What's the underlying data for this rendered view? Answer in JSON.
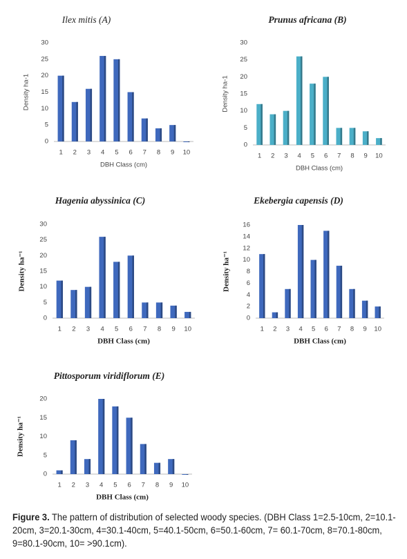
{
  "chart_data": [
    {
      "type": "bar",
      "title": "Ilex mitis  (A)",
      "xlabel": "DBH Class (cm)",
      "ylabel": "Density ha-1",
      "categories": [
        "1",
        "2",
        "3",
        "4",
        "5",
        "6",
        "7",
        "8",
        "9",
        "10"
      ],
      "values": [
        20,
        12,
        16,
        26,
        25,
        15,
        7,
        4,
        5,
        0
      ],
      "color": "#3f69bd",
      "ylim": [
        0,
        30
      ],
      "yticks": [
        0,
        5,
        10,
        15,
        20,
        25,
        30
      ]
    },
    {
      "type": "bar",
      "title": "Prunus africana (B)",
      "xlabel": "DBH Class (cm)",
      "ylabel": "Density ha-1",
      "categories": [
        "1",
        "2",
        "3",
        "4",
        "5",
        "6",
        "7",
        "8",
        "9",
        "10"
      ],
      "values": [
        12,
        9,
        10,
        26,
        18,
        20,
        5,
        5,
        4,
        2
      ],
      "color": "#4bafc8",
      "ylim": [
        0,
        30
      ],
      "yticks": [
        0,
        5,
        10,
        15,
        20,
        25,
        30
      ]
    },
    {
      "type": "bar",
      "title": "Hagenia abyssinica (C)",
      "xlabel": "DBH Class (cm)",
      "ylabel": "Density ha⁻¹",
      "categories": [
        "1",
        "2",
        "3",
        "4",
        "5",
        "6",
        "7",
        "8",
        "9",
        "10"
      ],
      "values": [
        12,
        9,
        10,
        26,
        18,
        20,
        5,
        5,
        4,
        2
      ],
      "color": "#3f69bd",
      "ylim": [
        0,
        30
      ],
      "yticks": [
        0,
        5,
        10,
        15,
        20,
        25,
        30
      ]
    },
    {
      "type": "bar",
      "title": "Ekebergia capensis (D)",
      "xlabel": "DBH Class (cm)",
      "ylabel": "Density ha⁻¹",
      "categories": [
        "1",
        "2",
        "3",
        "4",
        "5",
        "6",
        "7",
        "8",
        "9",
        "10"
      ],
      "values": [
        11,
        1,
        5,
        16,
        10,
        15,
        9,
        5,
        3,
        2
      ],
      "color": "#3f69bd",
      "ylim": [
        0,
        16
      ],
      "yticks": [
        0,
        2,
        4,
        6,
        8,
        10,
        12,
        14,
        16
      ]
    },
    {
      "type": "bar",
      "title": "Pittosporum viridiflorum (E)",
      "xlabel": "DBH Class (cm)",
      "ylabel": "Density ha⁻¹",
      "categories": [
        "1",
        "2",
        "3",
        "4",
        "5",
        "6",
        "7",
        "8",
        "9",
        "10"
      ],
      "values": [
        1,
        9,
        4,
        20,
        18,
        15,
        8,
        3,
        4,
        0
      ],
      "color": "#3f69bd",
      "ylim": [
        0,
        20
      ],
      "yticks": [
        0,
        5,
        10,
        15,
        20
      ]
    }
  ],
  "caption": {
    "label": "Figure 3.",
    "text": "The pattern of distribution of selected woody species. (DBH Class 1=2.5-10cm, 2=10.1-20cm, 3=20.1-30cm, 4=30.1-40cm, 5=40.1-50cm, 6=50.1-60cm, 7= 60.1-70cm, 8=70.1-80cm, 9=80.1-90cm, 10= >90.1cm)."
  }
}
